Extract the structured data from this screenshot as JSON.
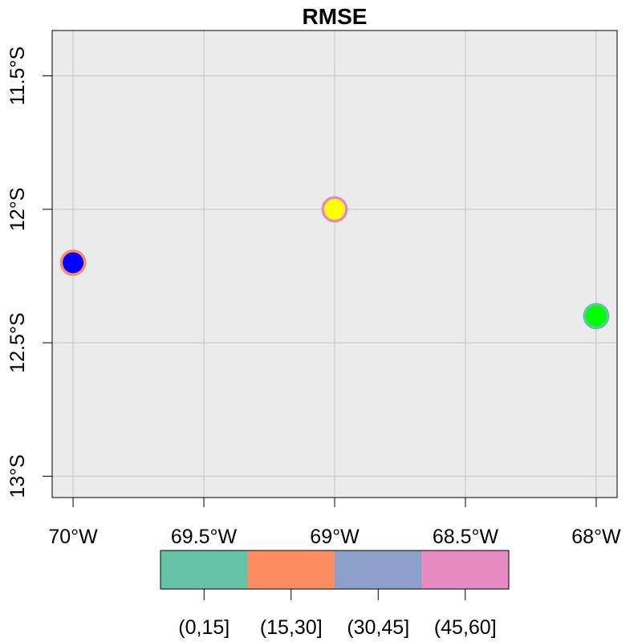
{
  "chart_data": {
    "type": "scatter",
    "title": "RMSE",
    "xlabel": "",
    "ylabel": "",
    "xlim": [
      -70.08,
      -67.92
    ],
    "ylim": [
      -13.08,
      -11.33
    ],
    "x_ticks": [
      -70,
      -69.5,
      -69,
      -68.5,
      -68
    ],
    "x_tick_labels": [
      "70°W",
      "69.5°W",
      "69°W",
      "68.5°W",
      "68°W"
    ],
    "y_ticks": [
      -11.5,
      -12,
      -12.5,
      -13
    ],
    "y_tick_labels": [
      "11.5°S",
      "12°S",
      "12.5°S",
      "13°S"
    ],
    "grid": true,
    "background": "#ebebeb",
    "gridcolor": "#c4c4c4",
    "points": [
      {
        "lon": -70,
        "lat": -12.2,
        "fill": "#0000ff",
        "ring": "#fc8d62"
      },
      {
        "lon": -69,
        "lat": -12.0,
        "fill": "#ffff00",
        "ring": "#e78ac3"
      },
      {
        "lon": -68,
        "lat": -12.4,
        "fill": "#00ff00",
        "ring": "#66c2a5"
      }
    ],
    "legend": {
      "position": "bottom",
      "categories": [
        "(0,15]",
        "(15,30]",
        "(30,45]",
        "(45,60]"
      ],
      "colors": [
        "#66c2a5",
        "#fc8d62",
        "#8da0cb",
        "#e78ac3"
      ]
    }
  }
}
